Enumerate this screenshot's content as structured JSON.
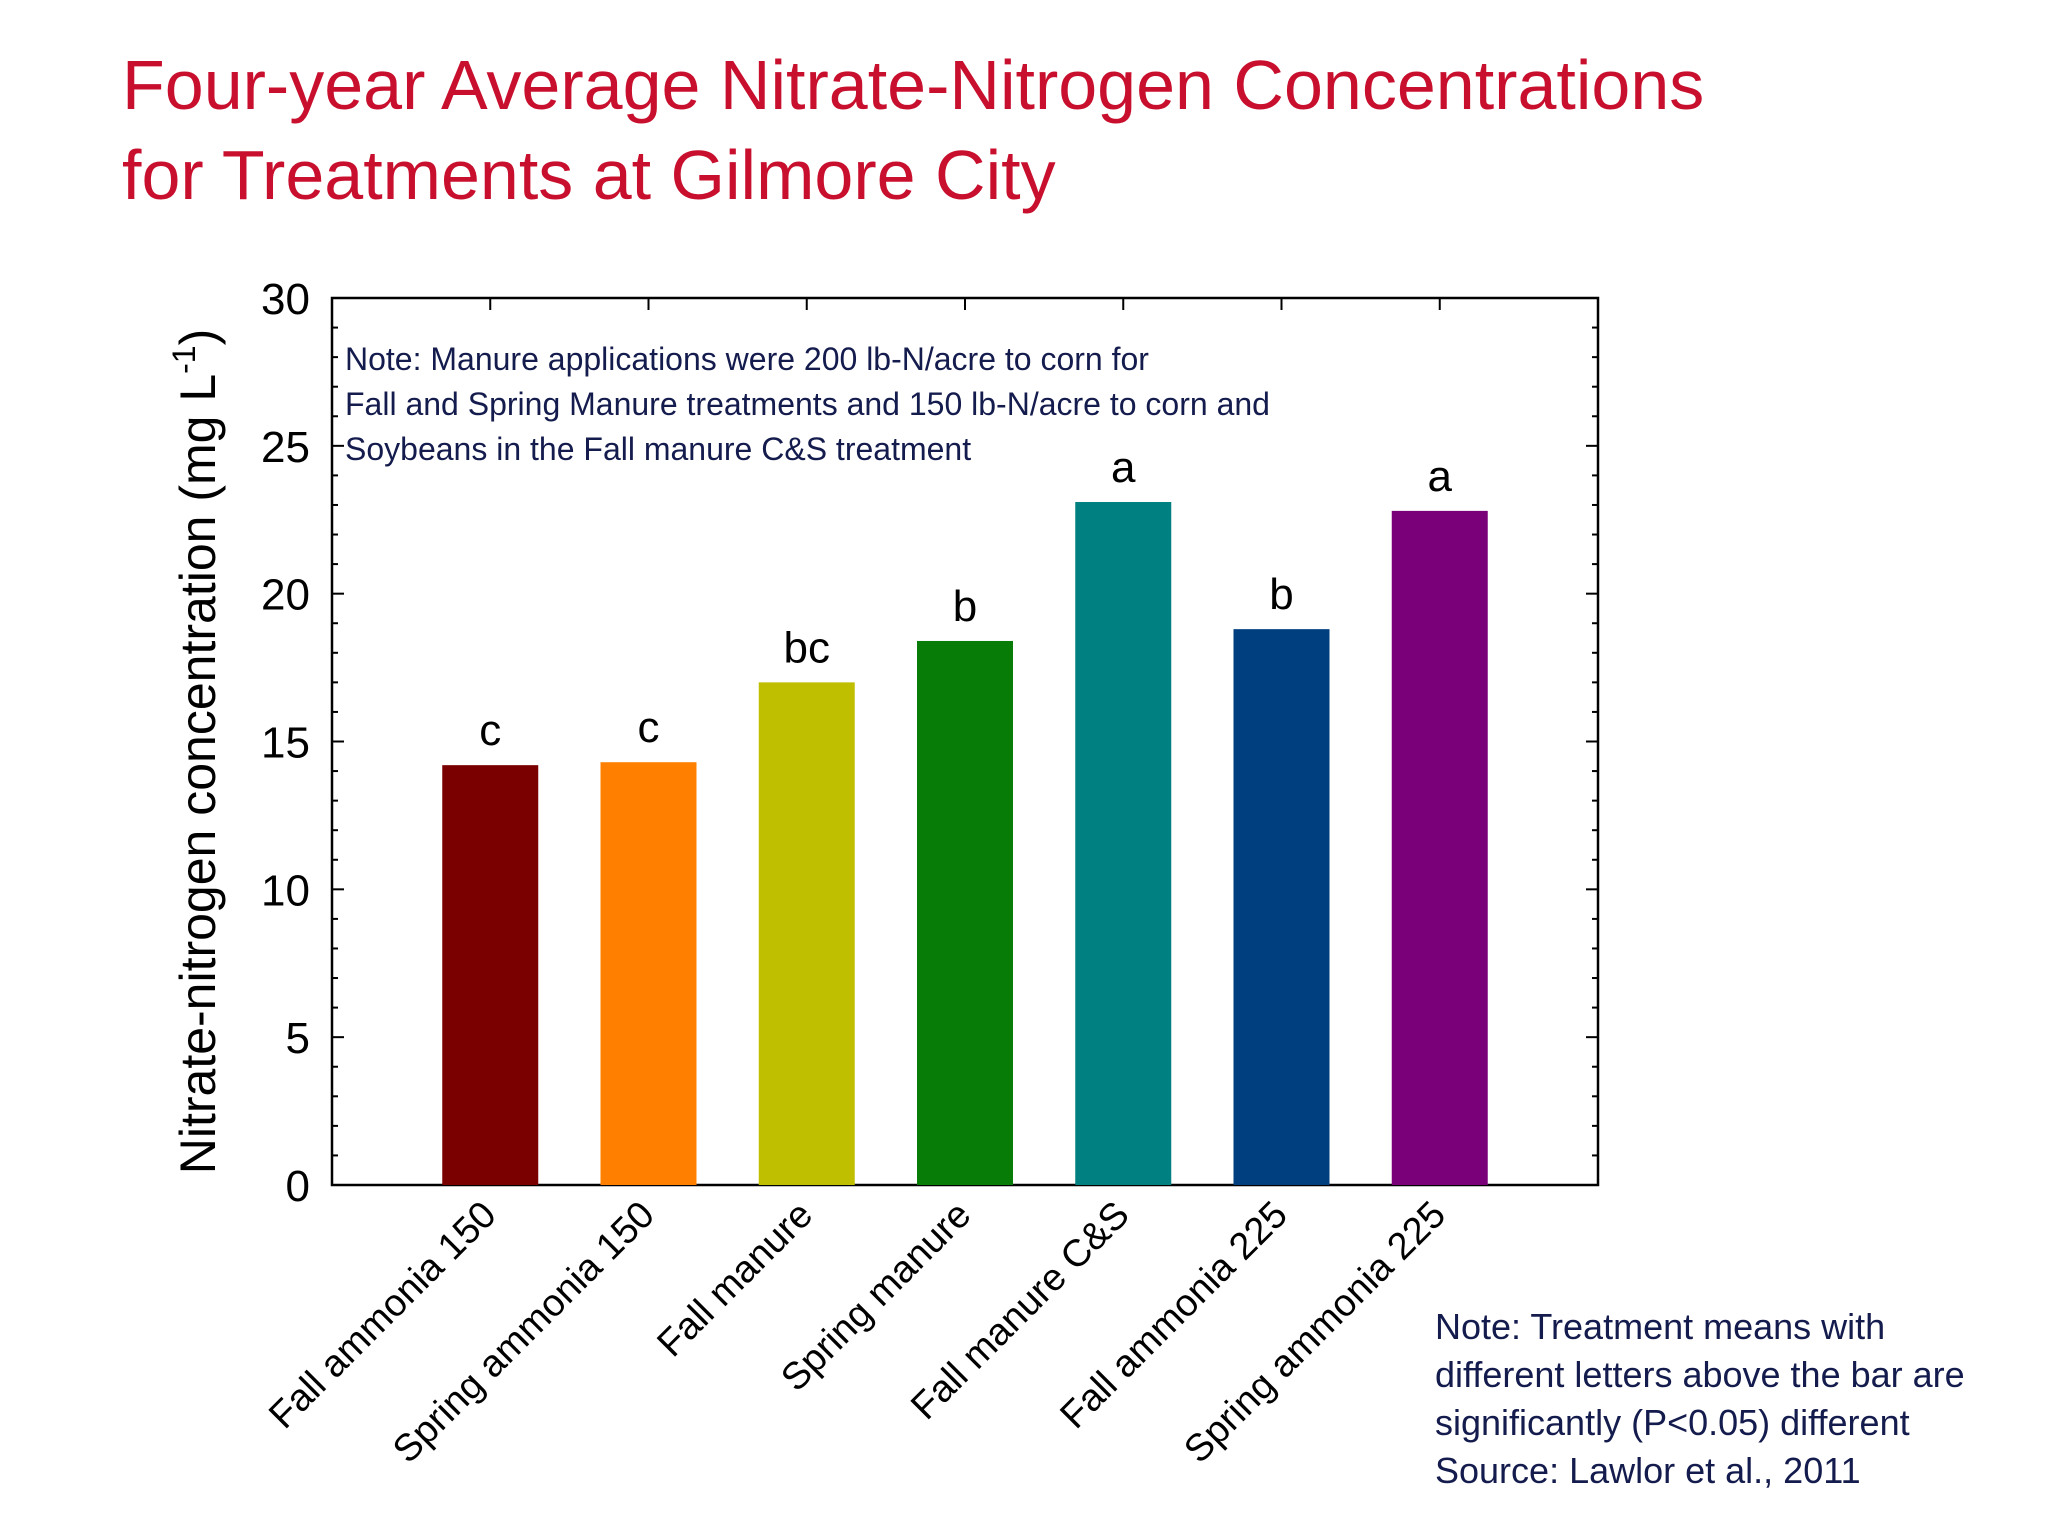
{
  "slide": {
    "title_lines": [
      "Four-year Average Nitrate-Nitrogen Concentrations",
      "for Treatments at Gilmore City"
    ],
    "bottom_note_lines": [
      "Note: Treatment means with",
      "different letters above the bar are",
      "significantly (P<0.05) different",
      "Source: Lawlor et al., 2011"
    ]
  },
  "colors": {
    "title": "#c8102e",
    "note_text": "#141b4d",
    "axis": "#000000"
  },
  "chart_data": {
    "type": "bar",
    "title": "",
    "ylabel": "Nitrate-nitrogen concentration (mg L",
    "ylabel_sup": "-1",
    "ylabel_end": ")",
    "xlabel": "",
    "ylim": [
      0,
      30
    ],
    "yticks": [
      0,
      5,
      10,
      15,
      20,
      25,
      30
    ],
    "categories": [
      "Fall ammonia 150",
      "Spring ammonia 150",
      "Fall manure",
      "Spring manure",
      "Fall manure C&S",
      "Fall ammonia 225",
      "Spring ammonia 225"
    ],
    "values": [
      14.2,
      14.3,
      17.0,
      18.4,
      23.1,
      18.8,
      22.8
    ],
    "significance_letters": [
      "c",
      "c",
      "bc",
      "b",
      "a",
      "b",
      "a"
    ],
    "bar_colors": [
      "#7a0000",
      "#ff8000",
      "#bfbf00",
      "#077d07",
      "#008080",
      "#003f7f",
      "#7a007a"
    ],
    "note_lines": [
      "Note: Manure applications were 200 lb-N/acre to corn for",
      "Fall and Spring Manure treatments and 150 lb-N/acre to corn and",
      "Soybeans in the Fall manure C&S treatment"
    ],
    "grid": false,
    "legend": "none"
  }
}
